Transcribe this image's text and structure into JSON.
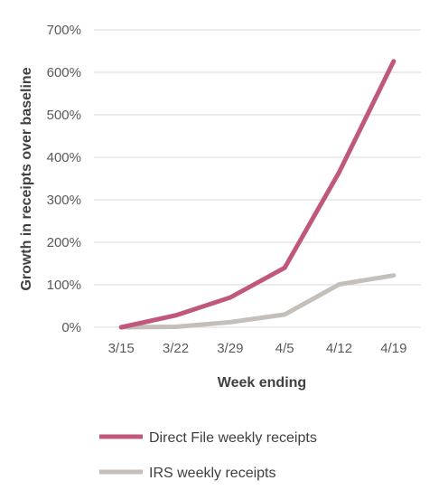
{
  "chart_data": {
    "type": "line",
    "title": "",
    "xlabel": "Week ending",
    "ylabel": "Growth in receipts over baseline",
    "categories": [
      "3/15",
      "3/22",
      "3/29",
      "4/5",
      "4/12",
      "4/19"
    ],
    "ylim": [
      0,
      700
    ],
    "yticks": [
      0,
      100,
      200,
      300,
      400,
      500,
      600,
      700
    ],
    "ytick_labels": [
      "0%",
      "100%",
      "200%",
      "300%",
      "400%",
      "500%",
      "600%",
      "700%"
    ],
    "grid": true,
    "legend": "bottom",
    "series": [
      {
        "name": "Direct File weekly receipts",
        "color": "#c0587e",
        "values": [
          0,
          28,
          70,
          140,
          365,
          626
        ]
      },
      {
        "name": "IRS weekly receipts",
        "color": "#c4bfb9",
        "values": [
          0,
          1,
          12,
          30,
          101,
          122
        ]
      }
    ]
  }
}
